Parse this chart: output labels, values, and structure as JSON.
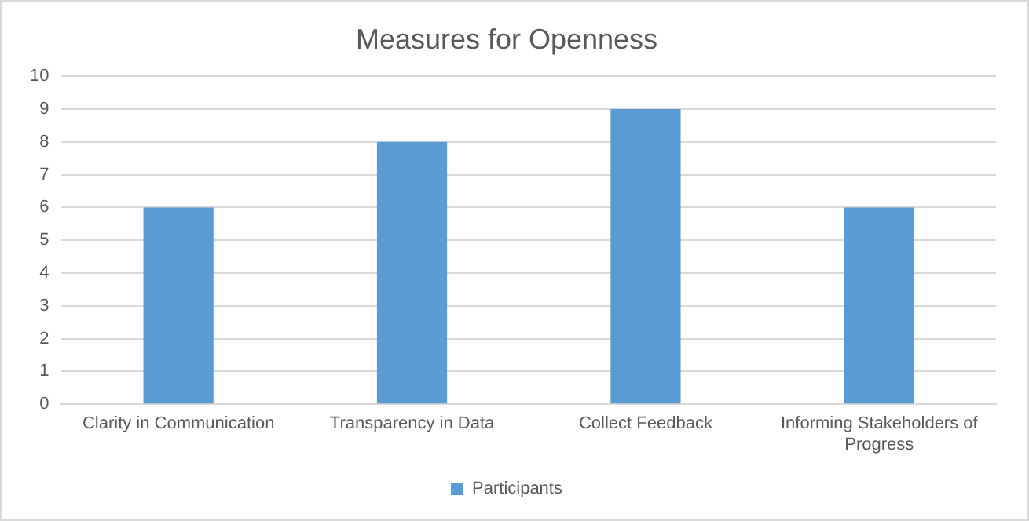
{
  "chart_data": {
    "type": "bar",
    "title": "Measures for Openness",
    "categories": [
      "Clarity in Communication",
      "Transparency in Data",
      "Collect Feedback",
      "Informing Stakeholders of Progress"
    ],
    "series": [
      {
        "name": "Participants",
        "color": "#5b9bd5",
        "values": [
          6,
          8,
          9,
          6
        ]
      }
    ],
    "ylim": [
      0,
      10
    ],
    "yticks": [
      0,
      1,
      2,
      3,
      4,
      5,
      6,
      7,
      8,
      9,
      10
    ],
    "grid": "y",
    "legend": "bottom"
  }
}
